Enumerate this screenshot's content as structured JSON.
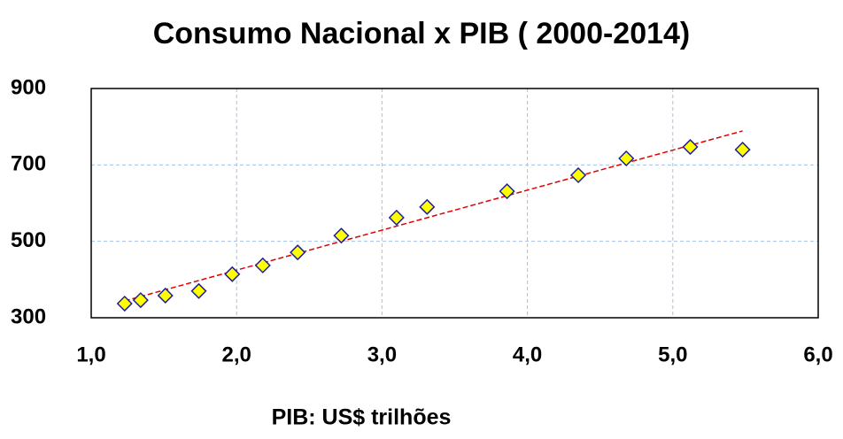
{
  "chart_data": {
    "type": "scatter",
    "title": "Consumo Nacional x PIB ( 2000-2014)",
    "xlabel": "PIB: US$ trilhões",
    "x": [
      1.23,
      1.34,
      1.51,
      1.74,
      1.97,
      2.18,
      2.42,
      2.72,
      3.1,
      3.31,
      3.86,
      4.35,
      4.68,
      5.12,
      5.48
    ],
    "values": [
      337,
      346,
      358,
      370,
      414,
      437,
      471,
      515,
      562,
      590,
      631,
      673,
      717,
      747,
      740
    ],
    "color": "#ffff00",
    "edgecolor": "#1f1fa0",
    "trendline": {
      "x": [
        1.23,
        5.48
      ],
      "y": [
        344,
        789
      ],
      "color": "#e00000"
    },
    "xlim": [
      1.0,
      6.0
    ],
    "xticks": [
      {
        "value": 1.0,
        "label": "1,0"
      },
      {
        "value": 2.0,
        "label": "2,0"
      },
      {
        "value": 3.0,
        "label": "3,0"
      },
      {
        "value": 4.0,
        "label": "4,0"
      },
      {
        "value": 5.0,
        "label": "5,0"
      },
      {
        "value": 6.0,
        "label": "6,0"
      }
    ],
    "ylim": [
      300,
      900
    ],
    "yticks": [
      300,
      500,
      700,
      900
    ],
    "grid": true,
    "gridcolor": "#9dc3e6"
  }
}
